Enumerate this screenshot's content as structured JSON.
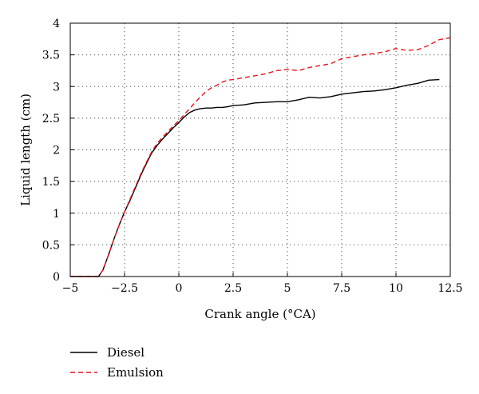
{
  "chart_data": {
    "type": "line",
    "xlabel": "Crank angle (°CA)",
    "ylabel": "Liquid length (cm)",
    "xlim": [
      -5,
      12.5
    ],
    "ylim": [
      0,
      4
    ],
    "xticks": [
      -5,
      -2.5,
      0,
      2.5,
      5,
      7.5,
      10,
      12.5
    ],
    "xtick_labels": [
      "−5",
      "−2.5",
      "0",
      "2.5",
      "5",
      "7.5",
      "10",
      "12.5"
    ],
    "yticks": [
      0,
      0.5,
      1,
      1.5,
      2,
      2.5,
      3,
      3.5,
      4
    ],
    "ytick_labels": [
      "0",
      "0.5",
      "1",
      "1.5",
      "2",
      "2.5",
      "3",
      "3.5",
      "4"
    ],
    "grid": "dotted",
    "legend_position": "bottom-left, below plot",
    "series": [
      {
        "name": "Diesel",
        "color": "#000000",
        "style": "solid",
        "x": [
          -5,
          -3.7,
          -3.5,
          -3.25,
          -3,
          -2.75,
          -2.5,
          -2.25,
          -2,
          -1.75,
          -1.5,
          -1.25,
          -1,
          -0.75,
          -0.5,
          -0.25,
          0,
          0.25,
          0.5,
          0.75,
          1,
          1.25,
          1.5,
          1.75,
          2,
          2.25,
          2.5,
          3,
          3.5,
          4,
          4.5,
          5,
          5.5,
          6,
          6.5,
          7,
          7.5,
          8,
          8.5,
          9,
          9.5,
          10,
          10.5,
          11,
          11.5,
          12
        ],
        "y": [
          0,
          0,
          0.1,
          0.33,
          0.58,
          0.81,
          1.02,
          1.2,
          1.4,
          1.6,
          1.78,
          1.95,
          2.07,
          2.17,
          2.26,
          2.35,
          2.43,
          2.52,
          2.59,
          2.63,
          2.65,
          2.66,
          2.66,
          2.67,
          2.67,
          2.68,
          2.7,
          2.71,
          2.74,
          2.75,
          2.76,
          2.76,
          2.79,
          2.83,
          2.82,
          2.84,
          2.88,
          2.9,
          2.92,
          2.93,
          2.95,
          2.98,
          3.02,
          3.05,
          3.1,
          3.11
        ]
      },
      {
        "name": "Emulsion",
        "color": "#e8141b",
        "style": "dashed",
        "x": [
          -5,
          -3.7,
          -3.5,
          -3.25,
          -3,
          -2.75,
          -2.5,
          -2.25,
          -2,
          -1.75,
          -1.5,
          -1.25,
          -1,
          -0.75,
          -0.5,
          -0.25,
          0,
          0.25,
          0.5,
          0.75,
          1,
          1.25,
          1.5,
          1.75,
          2,
          2.25,
          2.5,
          3,
          3.5,
          4,
          4.5,
          5,
          5.5,
          6,
          6.5,
          7,
          7.5,
          8,
          8.5,
          9,
          9.5,
          10,
          10.5,
          11,
          11.5,
          12,
          12.5
        ],
        "y": [
          0,
          0,
          0.1,
          0.33,
          0.58,
          0.81,
          1.02,
          1.22,
          1.42,
          1.62,
          1.8,
          1.97,
          2.1,
          2.2,
          2.29,
          2.38,
          2.46,
          2.56,
          2.65,
          2.75,
          2.84,
          2.92,
          2.98,
          3.02,
          3.07,
          3.1,
          3.11,
          3.14,
          3.17,
          3.2,
          3.25,
          3.27,
          3.25,
          3.3,
          3.33,
          3.36,
          3.44,
          3.47,
          3.5,
          3.52,
          3.55,
          3.6,
          3.57,
          3.58,
          3.65,
          3.74,
          3.77
        ]
      }
    ]
  }
}
